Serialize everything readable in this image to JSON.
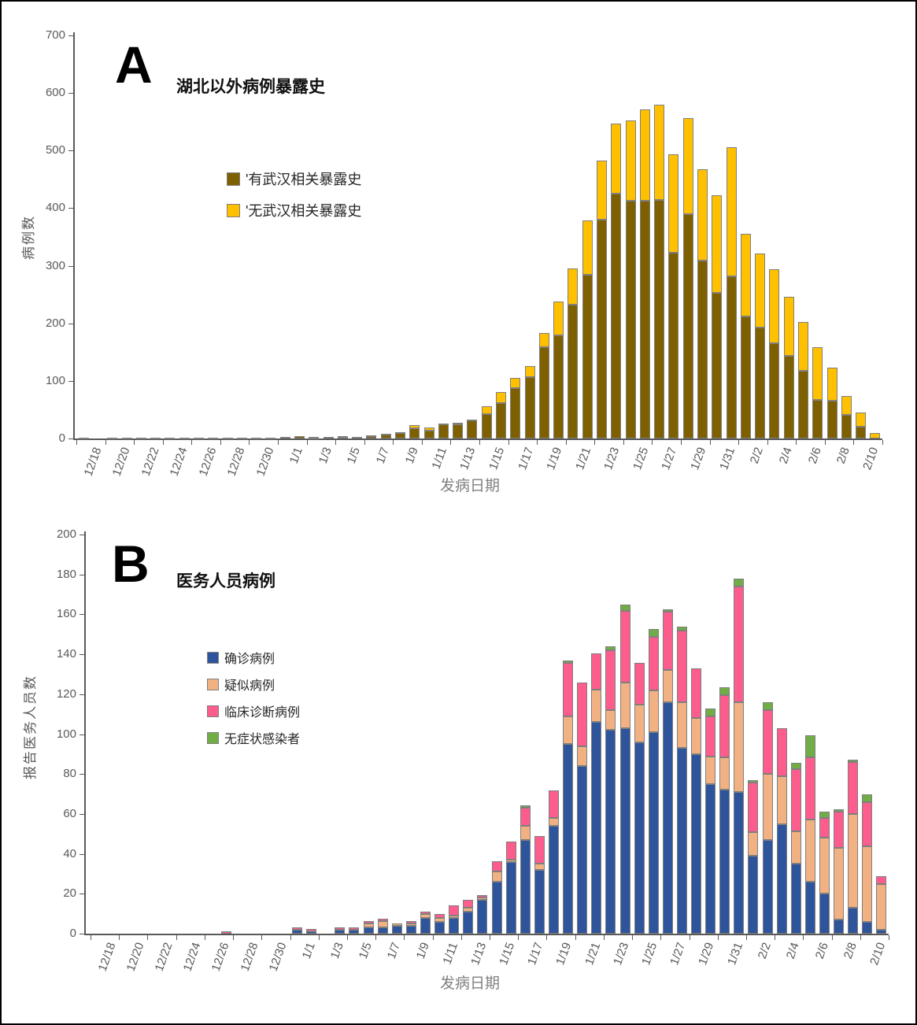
{
  "figure": {
    "background": "#ffffff",
    "frame_color": "#000000",
    "axis_color": "#595959",
    "tick_label_color": "#595959",
    "axis_title_color": "#808080",
    "bar_border_color": "#7f7f7f"
  },
  "chart_data": [
    {
      "type": "bar",
      "stacked": true,
      "panel": "A",
      "title": "湖北以外病例暴露史",
      "xlabel": "发病日期",
      "ylabel": "病例数",
      "ylim": [
        0,
        700
      ],
      "ytick_step": 100,
      "grid": false,
      "legend_position": "inside-upper-left",
      "xtick_label_every": 2,
      "categories": [
        "12/18",
        "12/19",
        "12/20",
        "12/21",
        "12/22",
        "12/23",
        "12/24",
        "12/25",
        "12/26",
        "12/27",
        "12/28",
        "12/29",
        "12/30",
        "12/31",
        "1/1",
        "1/2",
        "1/3",
        "1/4",
        "1/5",
        "1/6",
        "1/7",
        "1/8",
        "1/9",
        "1/10",
        "1/11",
        "1/12",
        "1/13",
        "1/14",
        "1/15",
        "1/16",
        "1/17",
        "1/18",
        "1/19",
        "1/20",
        "1/21",
        "1/22",
        "1/23",
        "1/24",
        "1/25",
        "1/26",
        "1/27",
        "1/28",
        "1/29",
        "1/30",
        "1/31",
        "2/1",
        "2/2",
        "2/3",
        "2/4",
        "2/5",
        "2/6",
        "2/7",
        "2/8",
        "2/9",
        "2/10",
        "2/11"
      ],
      "series": [
        {
          "name": "'有武汉相关暴露史",
          "color": "#7F6000",
          "values": [
            2,
            0,
            2,
            1,
            1,
            1,
            1,
            1,
            2,
            1,
            2,
            1,
            1,
            1,
            3,
            4,
            2,
            3,
            3,
            3,
            4,
            7,
            10,
            18,
            13,
            24,
            24,
            31,
            42,
            61,
            88,
            106,
            159,
            179,
            233,
            284,
            380,
            425,
            413,
            413,
            414,
            322,
            389,
            309,
            253,
            281,
            212,
            193,
            165,
            144,
            117,
            67,
            65,
            41,
            20,
            0
          ]
        },
        {
          "name": "'无武汉相关暴露史",
          "color": "#FFC000",
          "values": [
            0,
            0,
            0,
            0,
            0,
            0,
            0,
            0,
            0,
            0,
            0,
            0,
            0,
            0,
            0,
            0,
            1,
            0,
            1,
            0,
            1,
            1,
            1,
            5,
            6,
            2,
            3,
            2,
            13,
            19,
            18,
            19,
            25,
            59,
            63,
            94,
            103,
            122,
            139,
            159,
            166,
            171,
            167,
            158,
            170,
            224,
            143,
            128,
            129,
            103,
            85,
            92,
            57,
            33,
            24,
            10
          ]
        }
      ]
    },
    {
      "type": "bar",
      "stacked": true,
      "panel": "B",
      "title": "医务人员病例",
      "xlabel": "发病日期",
      "ylabel": "报告医务人员数",
      "ylim": [
        0,
        200
      ],
      "ytick_step": 20,
      "grid": false,
      "legend_position": "inside-upper-left",
      "xtick_label_every": 2,
      "categories": [
        "12/18",
        "12/19",
        "12/20",
        "12/21",
        "12/22",
        "12/23",
        "12/24",
        "12/25",
        "12/26",
        "12/27",
        "12/28",
        "12/29",
        "12/30",
        "12/31",
        "1/1",
        "1/2",
        "1/3",
        "1/4",
        "1/5",
        "1/6",
        "1/7",
        "1/8",
        "1/9",
        "1/10",
        "1/11",
        "1/12",
        "1/13",
        "1/14",
        "1/15",
        "1/16",
        "1/17",
        "1/18",
        "1/19",
        "1/20",
        "1/21",
        "1/22",
        "1/23",
        "1/24",
        "1/25",
        "1/26",
        "1/27",
        "1/28",
        "1/29",
        "1/30",
        "1/31",
        "2/1",
        "2/2",
        "2/3",
        "2/4",
        "2/5",
        "2/6",
        "2/7",
        "2/8",
        "2/9",
        "2/10",
        "2/11"
      ],
      "series": [
        {
          "name": "确诊病例",
          "color": "#2E549B",
          "values": [
            0,
            0,
            0,
            0,
            0,
            0,
            0,
            0,
            0,
            0,
            0,
            0,
            0,
            0,
            2,
            1,
            0,
            2,
            2,
            3,
            3,
            4,
            4,
            8,
            6,
            8,
            11,
            17,
            26,
            36,
            47,
            32,
            54,
            95,
            84,
            106,
            102,
            103,
            96,
            101,
            116,
            93,
            90,
            75,
            72,
            71,
            39,
            47,
            55,
            35,
            26,
            20,
            7,
            13,
            6,
            2
          ]
        },
        {
          "name": "疑似病例",
          "color": "#F2B183",
          "values": [
            0,
            0,
            0,
            0,
            0,
            0,
            0,
            0,
            0,
            0,
            0,
            0,
            0,
            0,
            0,
            0,
            0,
            0,
            0,
            2,
            3,
            1,
            1,
            2,
            2,
            1,
            2,
            1,
            5,
            1,
            7,
            3,
            4,
            14,
            10,
            16,
            10,
            23,
            19,
            21,
            16,
            23,
            18,
            14,
            16,
            45,
            12,
            33,
            24,
            16,
            31,
            28,
            36,
            47,
            38,
            23
          ]
        },
        {
          "name": "临床诊断病例",
          "color": "#FC5D8C",
          "values": [
            0,
            0,
            0,
            0,
            0,
            0,
            0,
            0,
            0,
            1,
            0,
            0,
            0,
            0,
            1,
            1,
            0,
            1,
            1,
            1,
            1,
            0,
            1,
            1,
            2,
            5,
            4,
            1,
            5,
            9,
            9,
            14,
            14,
            27,
            32,
            18,
            30,
            36,
            21,
            27,
            29,
            36,
            25,
            20,
            31,
            58,
            25,
            32,
            24,
            31,
            31,
            10,
            18,
            26,
            22,
            4
          ]
        },
        {
          "name": "无症状感染者",
          "color": "#70AD47",
          "values": [
            0,
            0,
            0,
            0,
            0,
            0,
            0,
            0,
            0,
            0,
            0,
            0,
            0,
            0,
            0,
            0,
            0,
            0,
            0,
            0,
            0,
            0,
            0,
            0,
            0,
            0,
            0,
            0,
            0,
            0,
            1,
            0,
            0,
            1,
            0,
            0,
            2,
            3,
            0,
            4,
            1,
            2,
            0,
            4,
            4,
            4,
            1,
            4,
            0,
            3,
            11,
            3,
            1,
            1,
            4,
            0
          ]
        }
      ]
    }
  ]
}
